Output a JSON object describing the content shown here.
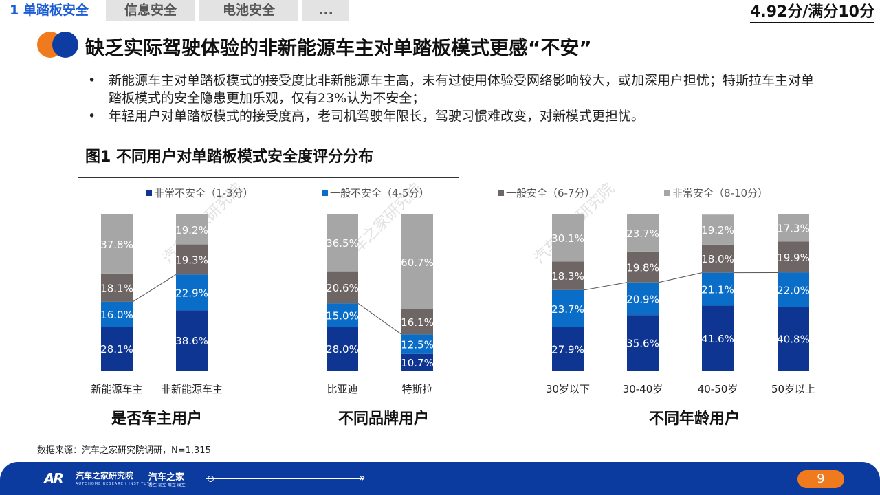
{
  "tabs": [
    "1 单踏板安全",
    "信息安全",
    "电池安全",
    "..."
  ],
  "score": "4.92分/满分10分",
  "page_title": "缺乏实际驾驶体验的非新能源车主对单踏板模式更感“不安”",
  "bullets": [
    "新能源车主对单踏板模式的接受度比非新能源车主高，未有过使用体验受网络影响较大，或加深用户担忧；特斯拉车主对单踏板模式的安全隐患更加乐观，仅有23%认为不安全；",
    "年轻用户对单踏板模式的接受度高，老司机驾驶年限长，驾驶习惯难改变，对新模式更担忧。"
  ],
  "figure_title": "图1 不同用户对单踏板模式安全度评分分布",
  "source": "数据来源：汽车之家研究院调研，N=1,315",
  "watermark": "汽车之家研究院",
  "footer": {
    "logo_mark": "AR",
    "logo_cn": "汽车之家研究院",
    "logo_en": "AUTOHOME RESEARCH INSTITUTE",
    "logo2_cn": "汽车之家",
    "logo2_sub": "看车·买车·用车·换车",
    "page_number": "9"
  },
  "colors": {
    "very_unsafe": "#0d3591",
    "unsafe": "#0a6ec9",
    "safe": "#6e6664",
    "very_safe": "#a6a6a6",
    "accent_orange": "#f07a1e",
    "footer_blue": "#0b3b9e"
  },
  "chart_data": {
    "type": "bar",
    "stacked": true,
    "unit": "%",
    "legend_position": "top",
    "grid": false,
    "ylim": [
      0,
      100
    ],
    "series_names": [
      "非常不安全（1-3分）",
      "一般不安全（4-5分）",
      "一般安全（6-7分）",
      "非常安全（8-10分）"
    ],
    "groups": [
      {
        "label": "是否车主用户",
        "categories": [
          "新能源车主",
          "非新能源车主"
        ],
        "values": [
          [
            28.1,
            16.0,
            18.1,
            37.8
          ],
          [
            38.6,
            22.9,
            19.3,
            19.2
          ]
        ]
      },
      {
        "label": "不同品牌用户",
        "categories": [
          "比亚迪",
          "特斯拉"
        ],
        "values": [
          [
            28.0,
            15.0,
            20.6,
            36.5
          ],
          [
            10.7,
            12.5,
            16.1,
            60.7
          ]
        ]
      },
      {
        "label": "不同年龄用户",
        "categories": [
          "30岁以下",
          "30-40岁",
          "40-50岁",
          "50岁以上"
        ],
        "values": [
          [
            27.9,
            23.7,
            18.3,
            30.1
          ],
          [
            35.6,
            20.9,
            19.8,
            23.7
          ],
          [
            41.6,
            21.1,
            18.0,
            19.2
          ],
          [
            40.8,
            22.0,
            19.9,
            17.3
          ]
        ]
      }
    ]
  }
}
